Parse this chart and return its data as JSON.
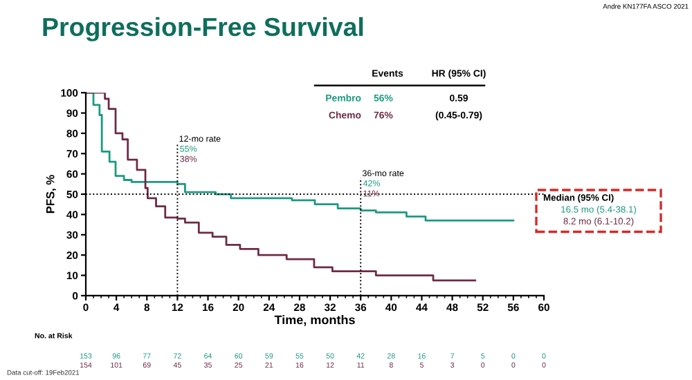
{
  "chart_data": {
    "type": "step",
    "title": "Progression-Free Survival",
    "xlabel": "Time, months",
    "ylabel": "PFS, %",
    "xlim": [
      0,
      60
    ],
    "xticks": [
      0,
      4,
      8,
      12,
      16,
      20,
      24,
      28,
      32,
      36,
      40,
      44,
      48,
      52,
      56,
      60
    ],
    "ylim": [
      0,
      100
    ],
    "yticks": [
      0,
      10,
      20,
      30,
      40,
      50,
      60,
      70,
      80,
      90,
      100
    ],
    "grid": false,
    "series": [
      {
        "name": "Pembro",
        "color": "#1a9a80",
        "x": [
          0,
          1,
          1.8,
          2.1,
          3.1,
          3.9,
          5,
          6,
          12,
          13,
          17,
          19,
          25,
          27,
          30,
          33,
          36,
          38,
          42,
          44.5,
          56
        ],
        "values": [
          100,
          94,
          89,
          71,
          66,
          59,
          57,
          56,
          55,
          51,
          50,
          48,
          48,
          47,
          45,
          43,
          42,
          41,
          39,
          37,
          37
        ]
      },
      {
        "name": "Chemo",
        "color": "#6e2a45",
        "x": [
          0,
          2.5,
          3,
          3.9,
          4.8,
          5.5,
          6.7,
          7.8,
          8.1,
          9.2,
          10.4,
          12,
          13,
          14.8,
          16.6,
          18.4,
          20.2,
          22.6,
          26.3,
          29.9,
          32.3,
          38,
          45.5,
          51
        ],
        "values": [
          100,
          97,
          92,
          80,
          77,
          67,
          62,
          53,
          48,
          44,
          38.5,
          38,
          36,
          31,
          29,
          25,
          23,
          20,
          18,
          14,
          12,
          10,
          7.5,
          7.5
        ]
      }
    ],
    "ref_lines": [
      {
        "axis": "x",
        "value": 12,
        "label": "12-mo rate",
        "color": "#000000",
        "line_style": "dotted"
      },
      {
        "axis": "x",
        "value": 36,
        "label": "36-mo rate",
        "color": "#000000",
        "line_style": "dotted"
      },
      {
        "axis": "y",
        "value": 50,
        "color": "#000000",
        "line_style": "dotted"
      }
    ],
    "annotations": [
      "55%",
      "38%",
      "42%",
      "11%",
      "Andre KN177FA ASCO 2021",
      "Events",
      "HR (95% CI)",
      "56%",
      "76%",
      "0.59",
      "(0.45-0.79)",
      "Median (95% CI)",
      "16.5 mo (5.4-38.1)",
      "8.2 mo (6.1-10.2)",
      "No. at Risk",
      "153 96 77 72 64 60 59 55 50 42 28 16 7 5 0 0",
      "154 101 69 45 35 25 21 16 12 11 8 5 3 0 0 0",
      "Data cut-off: 19Feb2021"
    ]
  }
}
